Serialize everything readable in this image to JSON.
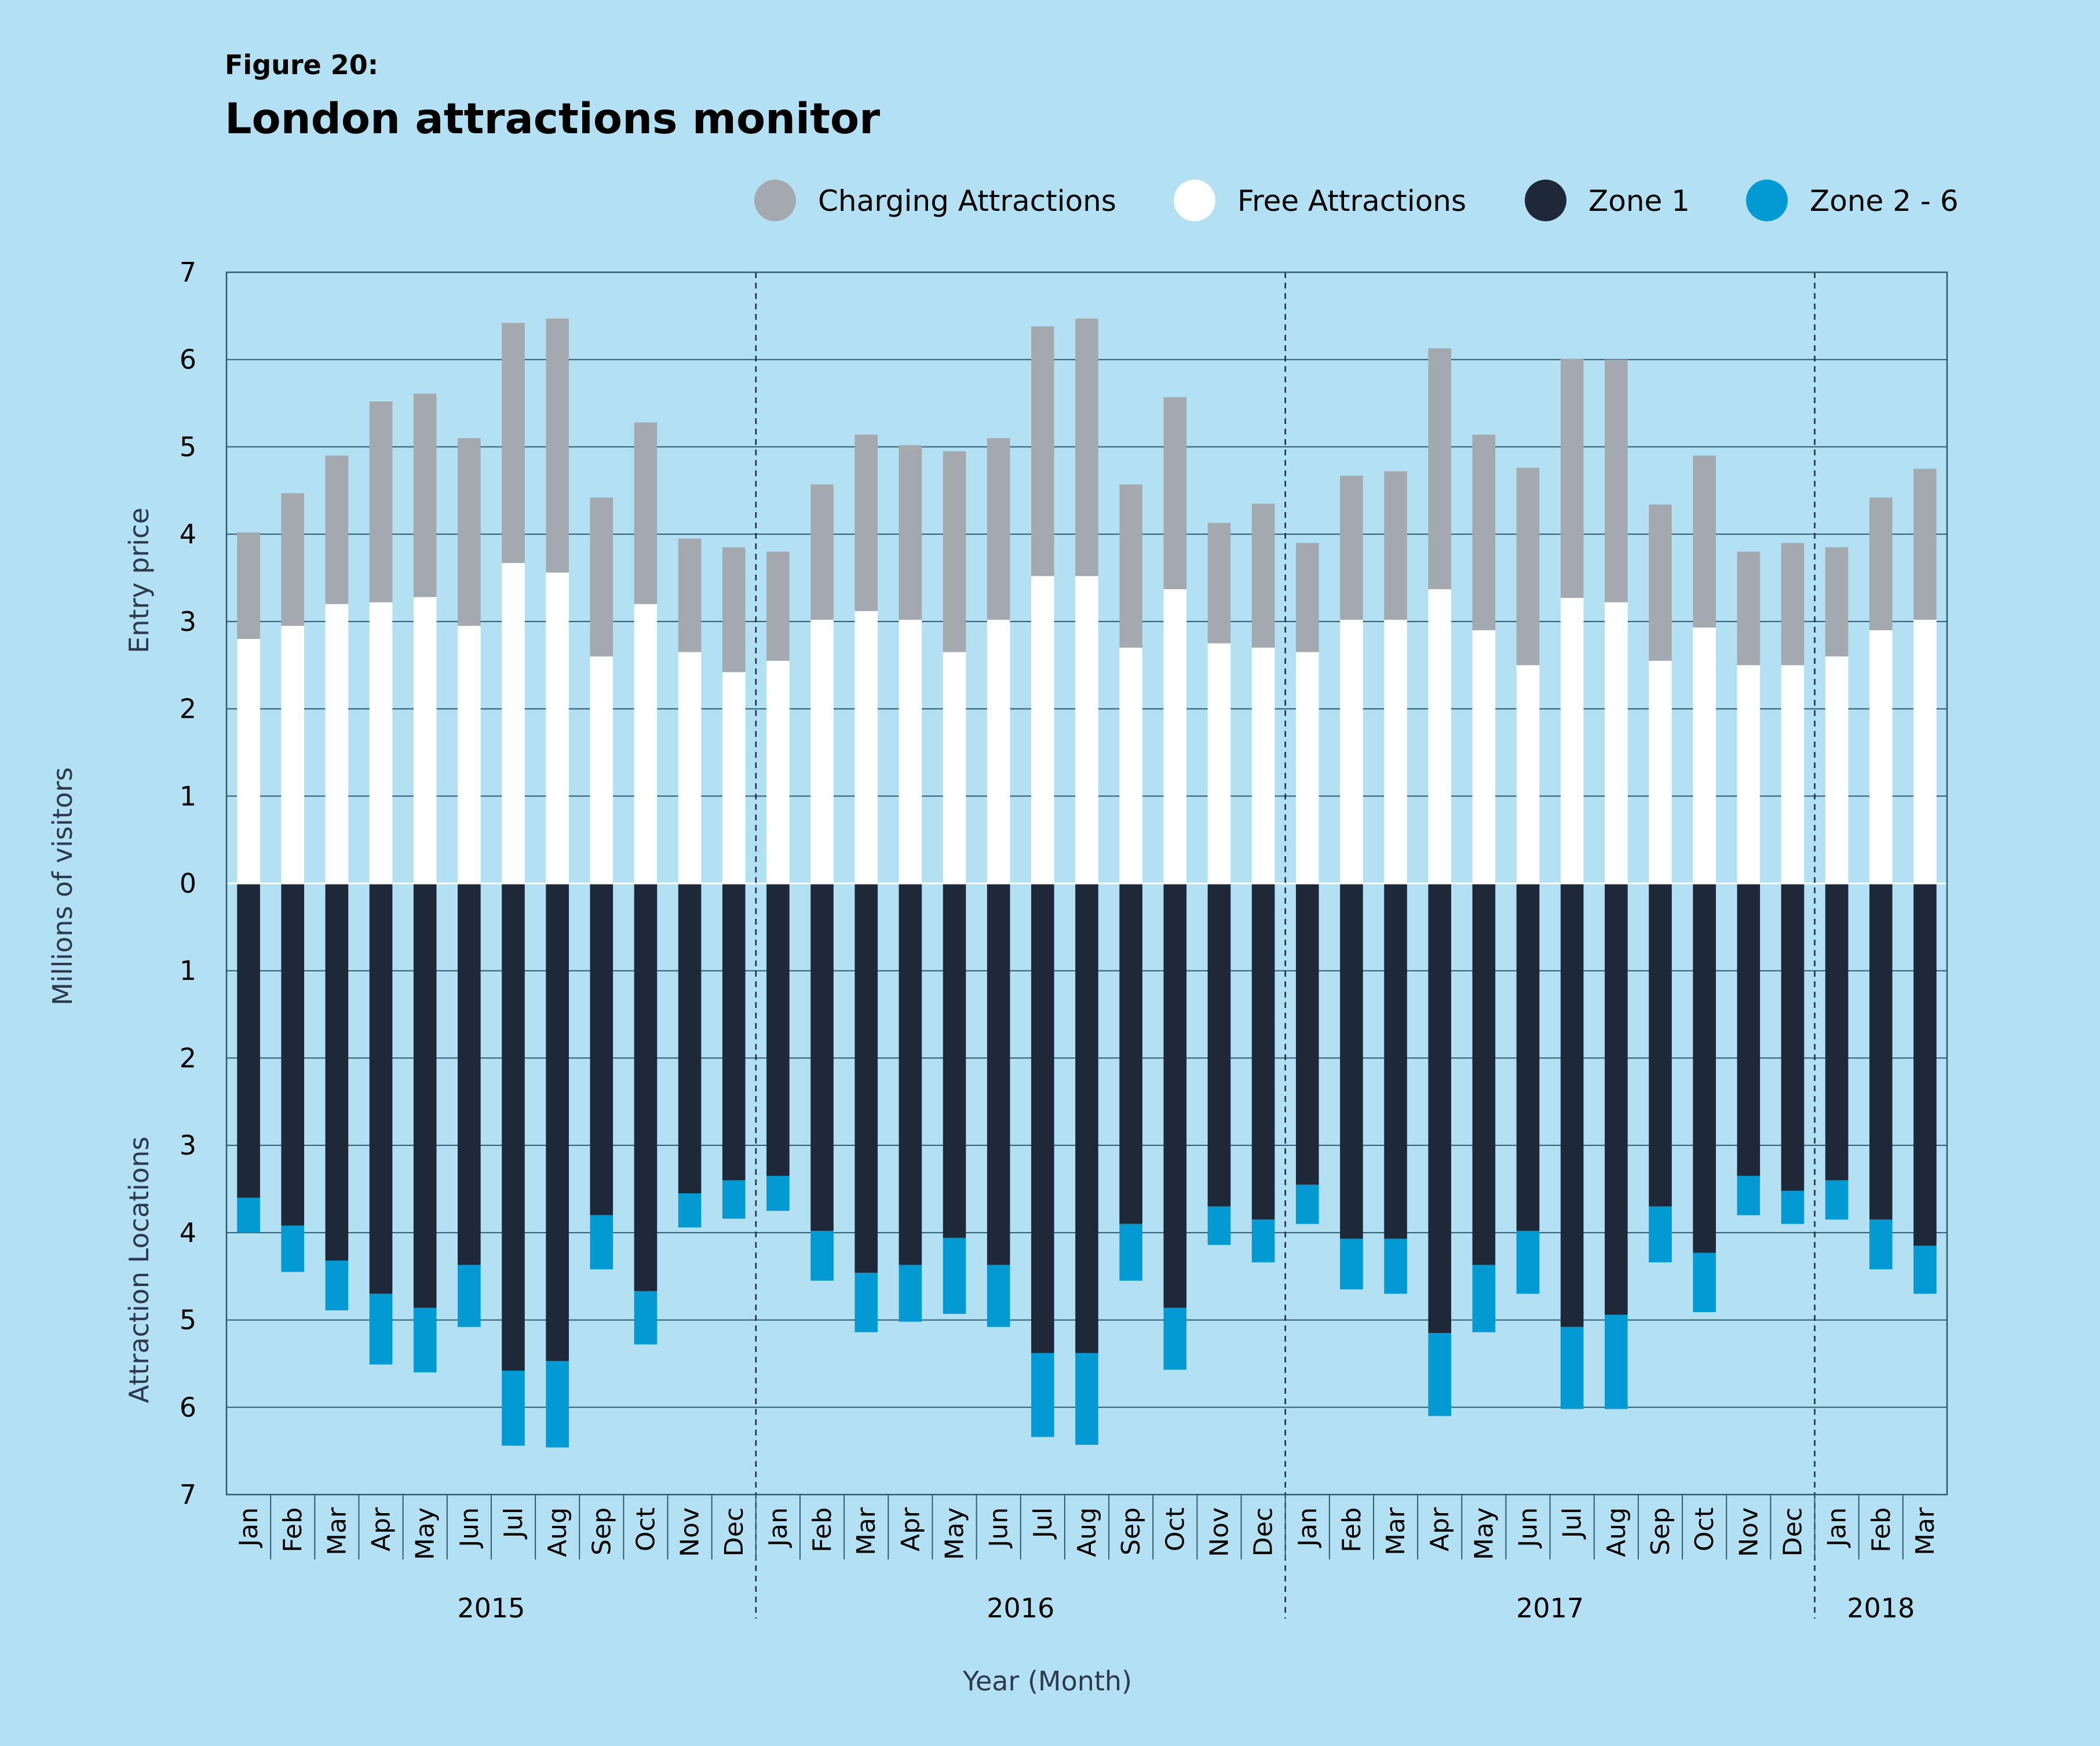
{
  "figure_label": "Figure 20:",
  "title": "London attractions monitor",
  "colors": {
    "background": "#b3e0f2",
    "charging": "#a4a9b0",
    "free": "#ffffff",
    "zone1": "#1e2838",
    "zone2_6": "#0399d2",
    "grid": "#2f5a72"
  },
  "legend": [
    {
      "label": "Charging Attractions",
      "color": "#a4a9b0"
    },
    {
      "label": "Free Attractions",
      "color": "#ffffff"
    },
    {
      "label": "Zone 1",
      "color": "#1e2838"
    },
    {
      "label": "Zone 2 - 6",
      "color": "#0399d2"
    }
  ],
  "axes": {
    "y_title": "Millions of visitors",
    "y_upper_title": "Entry price",
    "y_lower_title": "Attraction Locations",
    "x_title": "Year (Month)",
    "y_ticks": [
      "7",
      "6",
      "5",
      "4",
      "3",
      "2",
      "1",
      "0",
      "1",
      "2",
      "3",
      "4",
      "5",
      "6",
      "7"
    ]
  },
  "chart_data": {
    "type": "bar",
    "title": "London attractions monitor",
    "xlabel": "Year (Month)",
    "ylabel": "Millions of visitors",
    "ylim": [
      -7,
      7
    ],
    "years": [
      {
        "label": "2015",
        "count": 12
      },
      {
        "label": "2016",
        "count": 12
      },
      {
        "label": "2017",
        "count": 12
      },
      {
        "label": "2018",
        "count": 3
      }
    ],
    "categories": [
      "Jan",
      "Feb",
      "Mar",
      "Apr",
      "May",
      "Jun",
      "Jul",
      "Aug",
      "Sep",
      "Oct",
      "Nov",
      "Dec",
      "Jan",
      "Feb",
      "Mar",
      "Apr",
      "May",
      "Jun",
      "Jul",
      "Aug",
      "Sep",
      "Oct",
      "Nov",
      "Dec",
      "Jan",
      "Feb",
      "Mar",
      "Apr",
      "May",
      "Jun",
      "Jul",
      "Aug",
      "Sep",
      "Oct",
      "Nov",
      "Dec",
      "Jan",
      "Feb",
      "Mar"
    ],
    "upper_series": [
      {
        "name": "Free Attractions",
        "values": [
          2.8,
          2.95,
          3.2,
          3.22,
          3.28,
          2.95,
          3.67,
          3.56,
          2.6,
          3.2,
          2.65,
          2.42,
          2.55,
          3.02,
          3.12,
          3.02,
          2.65,
          3.02,
          3.52,
          3.52,
          2.7,
          3.37,
          2.75,
          2.7,
          2.65,
          3.02,
          3.02,
          3.37,
          2.9,
          2.5,
          3.27,
          3.22,
          2.55,
          2.93,
          2.5,
          2.5,
          2.6,
          2.9,
          3.02
        ]
      },
      {
        "name": "Charging Attractions",
        "values": [
          1.22,
          1.52,
          1.7,
          2.3,
          2.33,
          2.15,
          2.75,
          2.91,
          1.82,
          2.08,
          1.3,
          1.43,
          1.25,
          1.55,
          2.02,
          2.0,
          2.3,
          2.08,
          2.86,
          2.95,
          1.87,
          2.2,
          1.38,
          1.65,
          1.25,
          1.65,
          1.7,
          2.76,
          2.24,
          2.26,
          2.74,
          2.78,
          1.79,
          1.97,
          1.3,
          1.4,
          1.25,
          1.52,
          1.73
        ]
      }
    ],
    "lower_series": [
      {
        "name": "Zone 1",
        "values": [
          3.6,
          3.92,
          4.32,
          4.7,
          4.86,
          4.37,
          5.58,
          5.47,
          3.8,
          4.67,
          3.55,
          3.4,
          3.35,
          3.98,
          4.46,
          4.37,
          4.06,
          4.37,
          5.38,
          5.38,
          3.9,
          4.86,
          3.7,
          3.85,
          3.45,
          4.07,
          4.07,
          5.15,
          4.37,
          3.98,
          5.08,
          4.94,
          3.7,
          4.23,
          3.35,
          3.52,
          3.4,
          3.85,
          4.15
        ]
      },
      {
        "name": "Zone 2 - 6",
        "values": [
          0.4,
          0.53,
          0.57,
          0.81,
          0.74,
          0.71,
          0.86,
          0.99,
          0.62,
          0.61,
          0.39,
          0.44,
          0.4,
          0.57,
          0.68,
          0.65,
          0.87,
          0.71,
          0.96,
          1.05,
          0.65,
          0.71,
          0.44,
          0.49,
          0.45,
          0.58,
          0.63,
          0.95,
          0.77,
          0.72,
          0.94,
          1.08,
          0.64,
          0.68,
          0.45,
          0.38,
          0.45,
          0.57,
          0.55
        ]
      }
    ]
  }
}
